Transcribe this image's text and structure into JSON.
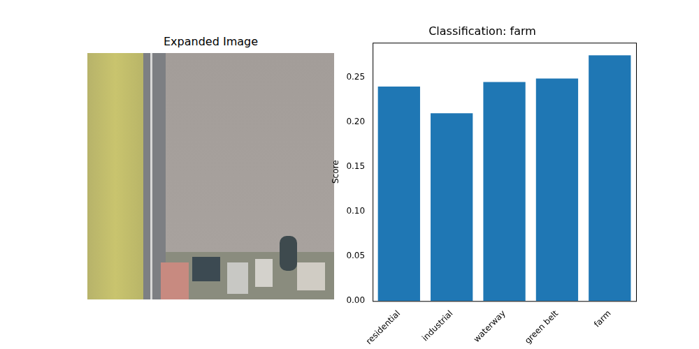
{
  "chart_data": [
    {
      "type": "image",
      "title": "Expanded Image"
    },
    {
      "type": "bar",
      "title": "Classification: farm",
      "categories": [
        "residential",
        "industrial",
        "waterway",
        "green belt",
        "farm"
      ],
      "values": [
        0.24,
        0.21,
        0.245,
        0.249,
        0.275
      ],
      "color": "#1f77b4",
      "y_label": "Score",
      "ylim": [
        0,
        0.289
      ],
      "yticks": [
        {
          "value": 0,
          "label": "0.00"
        },
        {
          "value": 0.05,
          "label": "0.05"
        },
        {
          "value": 0.1,
          "label": "0.10"
        },
        {
          "value": 0.15,
          "label": "0.15"
        },
        {
          "value": 0.2,
          "label": "0.20"
        },
        {
          "value": 0.25,
          "label": "0.25"
        }
      ],
      "grid": false
    }
  ]
}
